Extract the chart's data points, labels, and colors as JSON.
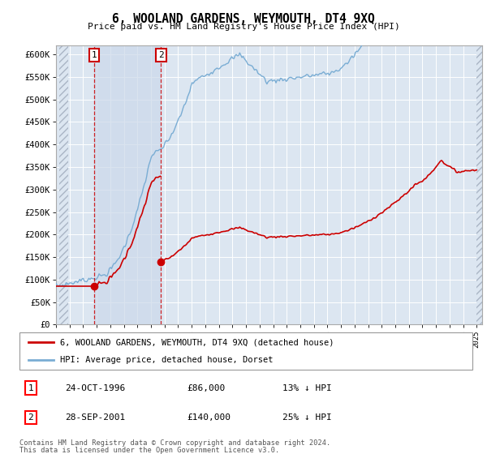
{
  "title": "6, WOOLAND GARDENS, WEYMOUTH, DT4 9XQ",
  "subtitle": "Price paid vs. HM Land Registry's House Price Index (HPI)",
  "ylim": [
    0,
    620000
  ],
  "yticks": [
    0,
    50000,
    100000,
    150000,
    200000,
    250000,
    300000,
    350000,
    400000,
    450000,
    500000,
    550000,
    600000
  ],
  "xlim_start": 1994.25,
  "xlim_end": 2025.4,
  "bg_color": "#ffffff",
  "plot_bg_color": "#dce6f1",
  "grid_color": "#ffffff",
  "sale_dates_num": [
    1996.81,
    2001.74
  ],
  "sale_prices": [
    86000,
    140000
  ],
  "sale_labels": [
    "1",
    "2"
  ],
  "hpi_color": "#7aadd4",
  "price_color": "#cc0000",
  "legend_price_label": "6, WOOLAND GARDENS, WEYMOUTH, DT4 9XQ (detached house)",
  "legend_hpi_label": "HPI: Average price, detached house, Dorset",
  "footnote1": "Contains HM Land Registry data © Crown copyright and database right 2024.",
  "footnote2": "This data is licensed under the Open Government Licence v3.0.",
  "table_entries": [
    {
      "num": "1",
      "date": "24-OCT-1996",
      "price": "£86,000",
      "change": "13% ↓ HPI"
    },
    {
      "num": "2",
      "date": "28-SEP-2001",
      "price": "£140,000",
      "change": "25% ↓ HPI"
    }
  ]
}
